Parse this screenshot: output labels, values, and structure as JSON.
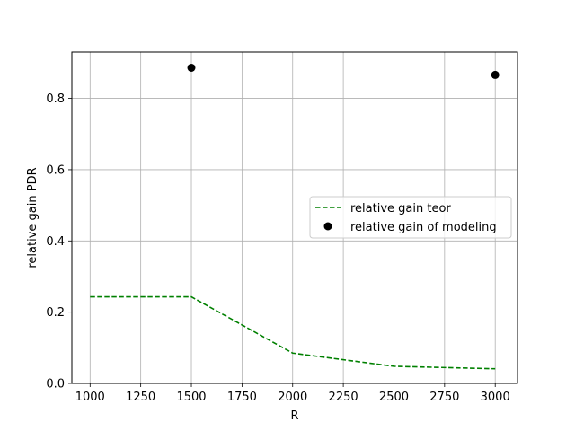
{
  "chart_data": {
    "type": "line",
    "title": "",
    "xlabel": "R",
    "ylabel": "relative gain PDR",
    "xlim": [
      910,
      3110
    ],
    "ylim": [
      0,
      0.93
    ],
    "xticks": [
      1000,
      1250,
      1500,
      1750,
      2000,
      2250,
      2500,
      2750,
      3000
    ],
    "yticks": [
      0.0,
      0.2,
      0.4,
      0.6,
      0.8
    ],
    "xtick_labels": [
      "1000",
      "1250",
      "1500",
      "1750",
      "2000",
      "2250",
      "2500",
      "2750",
      "3000"
    ],
    "ytick_labels": [
      "0.0",
      "0.2",
      "0.4",
      "0.6",
      "0.8"
    ],
    "grid": true,
    "legend_position": "center-right",
    "series": [
      {
        "name": "relative gain teor",
        "kind": "line",
        "style": "dashed",
        "color": "#008000",
        "x": [
          1000,
          1500,
          2000,
          2500,
          3000
        ],
        "y": [
          0.243,
          0.243,
          0.085,
          0.048,
          0.041
        ]
      },
      {
        "name": "relative gain of modeling",
        "kind": "scatter",
        "marker": "circle",
        "color": "#000000",
        "x": [
          1500,
          3000
        ],
        "y": [
          0.886,
          0.866
        ]
      }
    ]
  }
}
